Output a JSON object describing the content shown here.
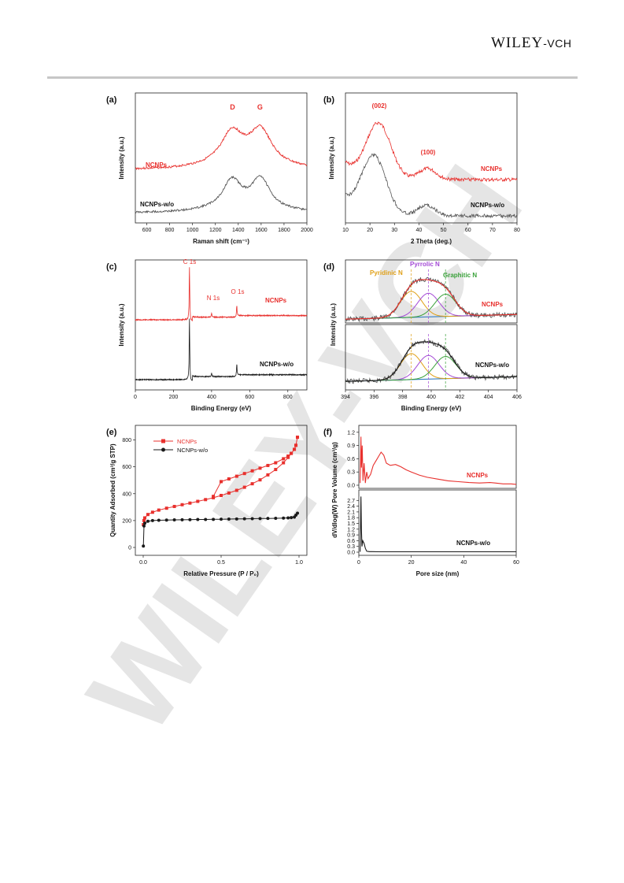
{
  "header": {
    "brand_main": "WILEY",
    "brand_sub": "-VCH"
  },
  "watermark": "WILEY-VCH",
  "colors": {
    "red": "#e8302d",
    "black": "#1a1a1a",
    "gray": "#555555",
    "orange": "#e0a018",
    "purple": "#a44ad6",
    "green": "#3aa13a",
    "blue": "#3b82c4",
    "watermark": "#cfcfcf"
  },
  "chart_data": [
    {
      "panel": "(a)",
      "type": "line",
      "xlabel": "Raman shift (cm⁻¹)",
      "ylabel": "Intensity (a.u.)",
      "xlim": [
        500,
        2000
      ],
      "ticks": [
        600,
        800,
        1000,
        1200,
        1400,
        1600,
        1800,
        2000
      ],
      "annotations": [
        {
          "text": "D",
          "x": 1350
        },
        {
          "text": "G",
          "x": 1590
        }
      ],
      "series": [
        {
          "name": "NCNPs",
          "color": "#e8302d",
          "peaks": [
            {
              "x": 1345,
              "h": 0.58
            },
            {
              "x": 1595,
              "h": 0.62
            }
          ]
        },
        {
          "name": "NCNPs-w/o",
          "color": "#555555",
          "peaks": [
            {
              "x": 1345,
              "h": 0.58
            },
            {
              "x": 1595,
              "h": 0.62
            }
          ]
        }
      ]
    },
    {
      "panel": "(b)",
      "type": "line",
      "xlabel": "2 Theta (deg.)",
      "ylabel": "Intensity (a.u.)",
      "xlim": [
        10,
        80
      ],
      "ticks": [
        10,
        20,
        30,
        40,
        50,
        60,
        70,
        80
      ],
      "annotations": [
        {
          "text": "(002)",
          "x": 23.5
        },
        {
          "text": "(100)",
          "x": 43.5
        }
      ],
      "series": [
        {
          "name": "NCNPs",
          "color": "#e8302d",
          "peaks": [
            {
              "x": 23.5,
              "h": 1.0
            },
            {
              "x": 43.5,
              "h": 0.2
            }
          ]
        },
        {
          "name": "NCNPs-w/o",
          "color": "#555555",
          "peaks": [
            {
              "x": 21.5,
              "h": 1.0
            },
            {
              "x": 43,
              "h": 0.18
            }
          ]
        }
      ]
    },
    {
      "panel": "(c)",
      "type": "line",
      "xlabel": "Binding Energy (eV)",
      "ylabel": "Intensity (a.u.)",
      "xlim": [
        0,
        900
      ],
      "ticks": [
        0,
        200,
        400,
        600,
        800
      ],
      "annotations": [
        {
          "text": "C 1s",
          "x": 284
        },
        {
          "text": "N 1s",
          "x": 400
        },
        {
          "text": "O 1s",
          "x": 532
        }
      ],
      "series": [
        {
          "name": "NCNPs",
          "color": "#e8302d",
          "peaks": [
            {
              "x": 284,
              "h": 1.0
            },
            {
              "x": 400,
              "h": 0.08
            },
            {
              "x": 532,
              "h": 0.22
            }
          ]
        },
        {
          "name": "NCNPs-w/o",
          "color": "#1a1a1a",
          "peaks": [
            {
              "x": 284,
              "h": 1.0
            },
            {
              "x": 400,
              "h": 0.06
            },
            {
              "x": 532,
              "h": 0.2
            }
          ]
        }
      ]
    },
    {
      "panel": "(d)",
      "type": "line",
      "xlabel": "Binding Energy (eV)",
      "ylabel": "Intensity (a.u.)",
      "xlim": [
        394,
        406
      ],
      "ticks": [
        394,
        396,
        398,
        400,
        402,
        404,
        406
      ],
      "annotations": [
        {
          "text": "Pyridinic N",
          "x": 398.6
        },
        {
          "text": "Pyrrolic N",
          "x": 399.8
        },
        {
          "text": "Graphitic N",
          "x": 401.0
        }
      ],
      "components": [
        {
          "name": "Pyridinic N",
          "x": 398.6,
          "h": 0.55,
          "color": "#e0a018"
        },
        {
          "name": "Pyrrolic N",
          "x": 399.8,
          "h": 0.5,
          "color": "#a44ad6"
        },
        {
          "name": "Graphitic N",
          "x": 401.0,
          "h": 0.47,
          "color": "#3aa13a"
        }
      ],
      "series": [
        {
          "name": "NCNPs",
          "color": "#e8302d"
        },
        {
          "name": "NCNPs-w/o",
          "color": "#1a1a1a"
        }
      ]
    },
    {
      "panel": "(e)",
      "type": "scatter",
      "xlabel": "Relative Pressure (P / P₀)",
      "ylabel": "Quantity Adsorbed (cm³/g STP)",
      "xlim": [
        0,
        1
      ],
      "ylim": [
        0,
        850
      ],
      "xticks": [
        0.0,
        0.5,
        1.0
      ],
      "yticks": [
        0,
        200,
        400,
        600,
        800
      ],
      "legend": "top-left",
      "series": [
        {
          "name": "NCNPs",
          "color": "#e8302d",
          "x": [
            0.001,
            0.005,
            0.01,
            0.03,
            0.06,
            0.1,
            0.15,
            0.2,
            0.25,
            0.3,
            0.35,
            0.4,
            0.45,
            0.5,
            0.55,
            0.6,
            0.65,
            0.7,
            0.75,
            0.8,
            0.85,
            0.9,
            0.93,
            0.95,
            0.97,
            0.98,
            0.99,
            0.99,
            0.98,
            0.97,
            0.95,
            0.93,
            0.9,
            0.85,
            0.8,
            0.75,
            0.7,
            0.65,
            0.6,
            0.55,
            0.5,
            0.45
          ],
          "y": [
            170,
            200,
            220,
            245,
            262,
            278,
            292,
            305,
            318,
            330,
            343,
            356,
            370,
            387,
            405,
            425,
            448,
            474,
            503,
            540,
            580,
            630,
            670,
            700,
            730,
            760,
            820,
            820,
            760,
            730,
            700,
            680,
            660,
            630,
            610,
            590,
            570,
            550,
            530,
            510,
            490,
            380
          ]
        },
        {
          "name": "NCNPs-w/o",
          "color": "#1a1a1a",
          "x": [
            0.001,
            0.005,
            0.01,
            0.03,
            0.06,
            0.1,
            0.15,
            0.2,
            0.25,
            0.3,
            0.35,
            0.4,
            0.45,
            0.5,
            0.55,
            0.6,
            0.65,
            0.7,
            0.75,
            0.8,
            0.85,
            0.9,
            0.93,
            0.95,
            0.97,
            0.98,
            0.99
          ],
          "y": [
            10,
            160,
            180,
            195,
            200,
            202,
            204,
            205,
            206,
            207,
            208,
            208,
            209,
            210,
            211,
            212,
            213,
            214,
            215,
            216,
            217,
            218,
            220,
            222,
            226,
            240,
            255
          ]
        }
      ]
    },
    {
      "panel": "(f)",
      "type": "line",
      "xlabel": "Pore size (nm)",
      "ylabel": "dV/dlog(W) Pore Volume (cm³/g)",
      "xlim": [
        0,
        60
      ],
      "ticks": [
        0,
        20,
        40,
        60
      ],
      "top": {
        "yticks": [
          0.0,
          0.3,
          0.6,
          0.9,
          1.2
        ],
        "ylim": [
          0,
          1.25
        ],
        "series": {
          "name": "NCNPs",
          "color": "#e8302d",
          "x": [
            0.5,
            0.8,
            1.0,
            1.3,
            1.6,
            2.0,
            2.5,
            3.0,
            3.5,
            4.5,
            5.5,
            6.5,
            7.5,
            8.5,
            9.5,
            10.5,
            12,
            14,
            16,
            18,
            20,
            23,
            26,
            30,
            34,
            38,
            42,
            46,
            50,
            52,
            55,
            58,
            60
          ],
          "y": [
            0.05,
            1.1,
            0.4,
            0.9,
            0.1,
            0.5,
            0.05,
            0.3,
            0.15,
            0.25,
            0.45,
            0.55,
            0.65,
            0.75,
            0.68,
            0.5,
            0.45,
            0.47,
            0.42,
            0.35,
            0.3,
            0.23,
            0.18,
            0.14,
            0.1,
            0.08,
            0.06,
            0.05,
            0.06,
            0.05,
            0.03,
            0.03,
            0.02
          ]
        }
      },
      "bottom": {
        "yticks": [
          0.0,
          0.3,
          0.6,
          0.9,
          1.2,
          1.5,
          1.8,
          2.1,
          2.4,
          2.7
        ],
        "ylim": [
          0,
          3.0
        ],
        "series": {
          "name": "NCNPs-w/o",
          "color": "#1a1a1a",
          "x": [
            0.5,
            0.8,
            1.0,
            1.2,
            1.5,
            2.0,
            2.5,
            3,
            4,
            5,
            8,
            12,
            20,
            30,
            40,
            50,
            60
          ],
          "y": [
            0.02,
            2.9,
            1.2,
            0.3,
            0.6,
            0.45,
            0.2,
            0.05,
            0.03,
            0.03,
            0.02,
            0.02,
            0.02,
            0.02,
            0.02,
            0.02,
            0.02
          ]
        }
      }
    }
  ]
}
